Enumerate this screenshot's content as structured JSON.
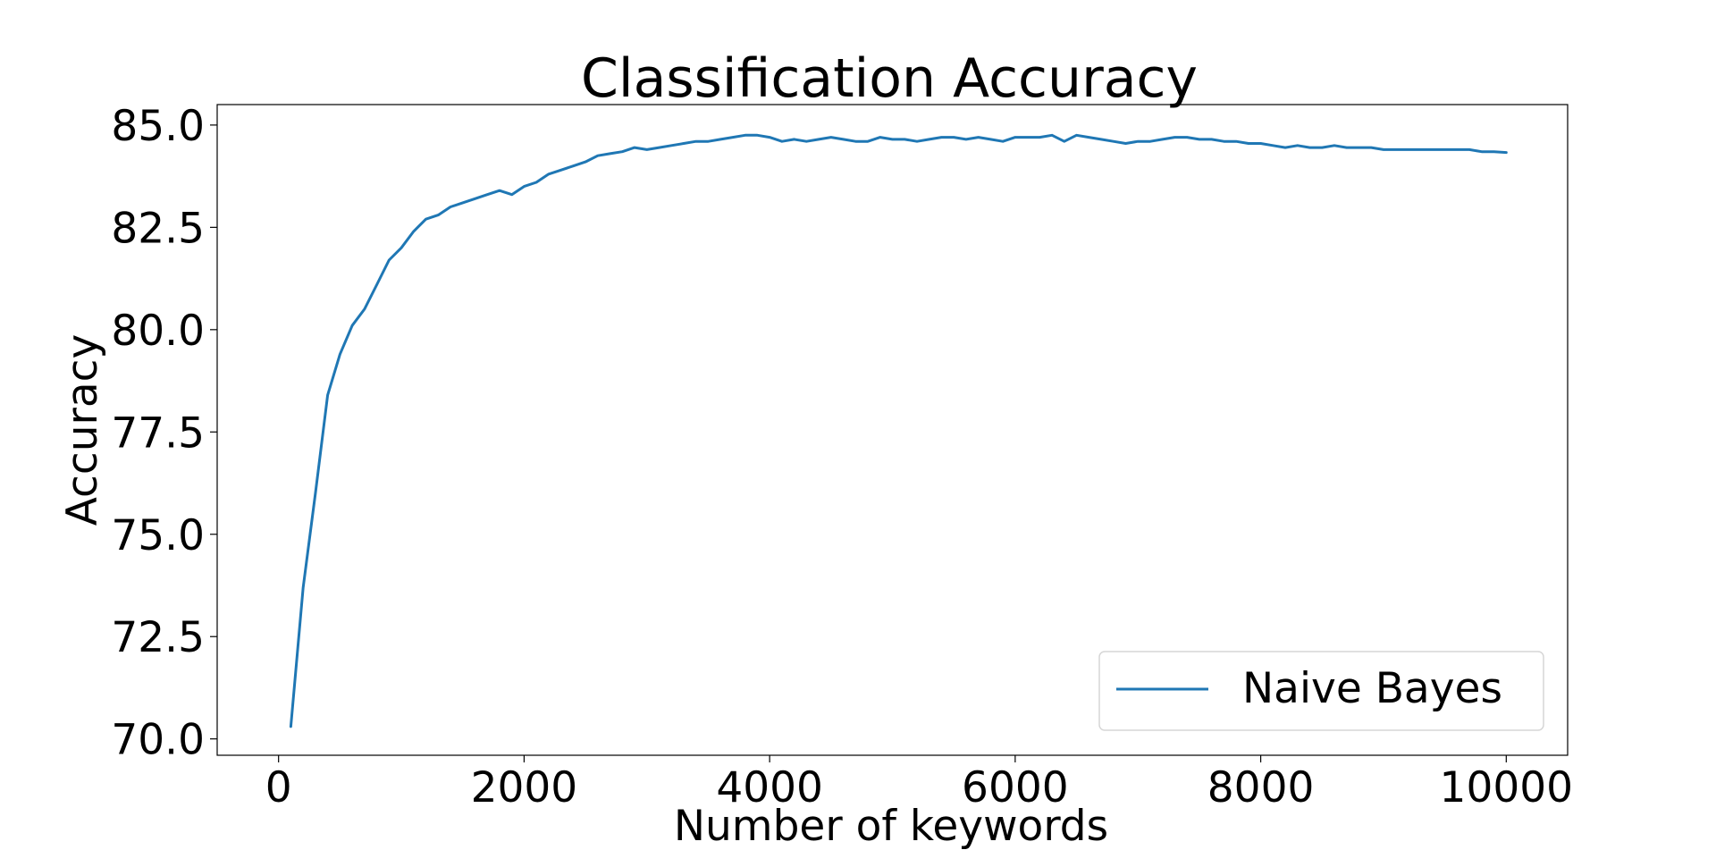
{
  "chart_data": {
    "type": "line",
    "title": "Classification Accuracy",
    "xlabel": "Number of keywords",
    "ylabel": "Accuracy",
    "xlim": [
      -500,
      10500
    ],
    "ylim": [
      69.6,
      85.5
    ],
    "xticks": [
      0,
      2000,
      4000,
      6000,
      8000,
      10000
    ],
    "xtick_labels": [
      "0",
      "2000",
      "4000",
      "6000",
      "8000",
      "10000"
    ],
    "yticks": [
      70.0,
      72.5,
      75.0,
      77.5,
      80.0,
      82.5,
      85.0
    ],
    "ytick_labels": [
      "70.0",
      "72.5",
      "75.0",
      "77.5",
      "80.0",
      "82.5",
      "85.0"
    ],
    "grid": false,
    "legend_position": "lower-right",
    "series": [
      {
        "name": "Naive Bayes",
        "color": "#1f77b4",
        "x": [
          100,
          200,
          300,
          400,
          500,
          600,
          700,
          800,
          900,
          1000,
          1100,
          1200,
          1300,
          1400,
          1500,
          1600,
          1700,
          1800,
          1900,
          2000,
          2100,
          2200,
          2300,
          2400,
          2500,
          2600,
          2700,
          2800,
          2900,
          3000,
          3100,
          3200,
          3300,
          3400,
          3500,
          3600,
          3700,
          3800,
          3900,
          4000,
          4100,
          4200,
          4300,
          4400,
          4500,
          4600,
          4700,
          4800,
          4900,
          5000,
          5100,
          5200,
          5300,
          5400,
          5500,
          5600,
          5700,
          5800,
          5900,
          6000,
          6100,
          6200,
          6300,
          6400,
          6500,
          6600,
          6700,
          6800,
          6900,
          7000,
          7100,
          7200,
          7300,
          7400,
          7500,
          7600,
          7700,
          7800,
          7900,
          8000,
          8100,
          8200,
          8300,
          8400,
          8500,
          8600,
          8700,
          8800,
          8900,
          9000,
          9100,
          9200,
          9300,
          9400,
          9500,
          9600,
          9700,
          9800,
          9900,
          10000
        ],
        "y": [
          70.3,
          73.7,
          76.0,
          78.4,
          79.4,
          80.1,
          80.5,
          81.1,
          81.7,
          82.0,
          82.4,
          82.7,
          82.8,
          83.0,
          83.1,
          83.2,
          83.3,
          83.4,
          83.3,
          83.5,
          83.6,
          83.8,
          83.9,
          84.0,
          84.1,
          84.25,
          84.3,
          84.35,
          84.45,
          84.4,
          84.45,
          84.5,
          84.55,
          84.6,
          84.6,
          84.65,
          84.7,
          84.75,
          84.75,
          84.7,
          84.6,
          84.65,
          84.6,
          84.65,
          84.7,
          84.65,
          84.6,
          84.6,
          84.7,
          84.65,
          84.65,
          84.6,
          84.65,
          84.7,
          84.7,
          84.65,
          84.7,
          84.65,
          84.6,
          84.7,
          84.7,
          84.7,
          84.75,
          84.6,
          84.75,
          84.7,
          84.65,
          84.6,
          84.55,
          84.6,
          84.6,
          84.65,
          84.7,
          84.7,
          84.65,
          84.65,
          84.6,
          84.6,
          84.55,
          84.55,
          84.5,
          84.45,
          84.5,
          84.45,
          84.45,
          84.5,
          84.45,
          84.45,
          84.45,
          84.4,
          84.4,
          84.4,
          84.4,
          84.4,
          84.4,
          84.4,
          84.4,
          84.35,
          84.35,
          84.33
        ]
      }
    ]
  }
}
